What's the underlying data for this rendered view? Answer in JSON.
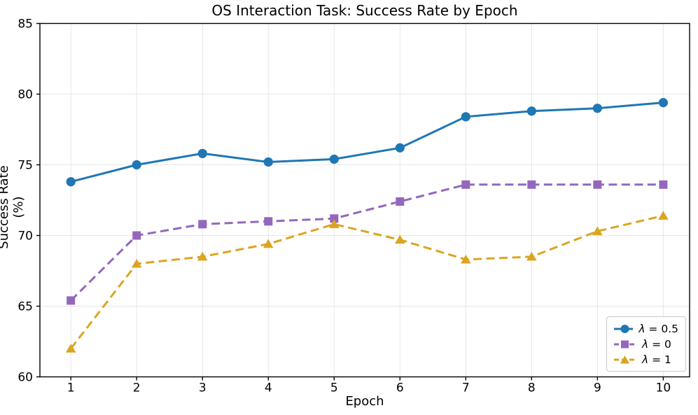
{
  "chart_data": {
    "type": "line",
    "title": "OS Interaction Task: Success Rate by Epoch",
    "xlabel": "Epoch",
    "ylabel": "Success Rate (%)",
    "x": [
      1,
      2,
      3,
      4,
      5,
      6,
      7,
      8,
      9,
      10
    ],
    "xticks": [
      1,
      2,
      3,
      4,
      5,
      6,
      7,
      8,
      9,
      10
    ],
    "yticks": [
      60,
      65,
      70,
      75,
      80,
      85
    ],
    "xlim": [
      0.53,
      10.4
    ],
    "ylim": [
      60,
      85
    ],
    "grid": true,
    "grid_color": "#e6e6e6",
    "axis_color": "#000000",
    "legend_position": "lower right",
    "series": [
      {
        "name": "λ = 0.5",
        "color": "#1f77b4",
        "line_style": "solid",
        "marker": "circle",
        "values": [
          73.8,
          75.0,
          75.8,
          75.2,
          75.4,
          76.2,
          78.4,
          78.8,
          79.0,
          79.4
        ]
      },
      {
        "name": "λ = 0",
        "color": "#9467bd",
        "line_style": "dashed",
        "marker": "square",
        "values": [
          65.4,
          70.0,
          70.8,
          71.0,
          71.2,
          72.4,
          73.6,
          73.6,
          73.6,
          73.6
        ]
      },
      {
        "name": "λ = 1",
        "color": "#daa520",
        "line_style": "dashed",
        "marker": "triangle",
        "values": [
          62.0,
          68.0,
          68.5,
          69.4,
          70.8,
          69.7,
          68.3,
          68.5,
          70.3,
          71.4
        ]
      }
    ]
  }
}
